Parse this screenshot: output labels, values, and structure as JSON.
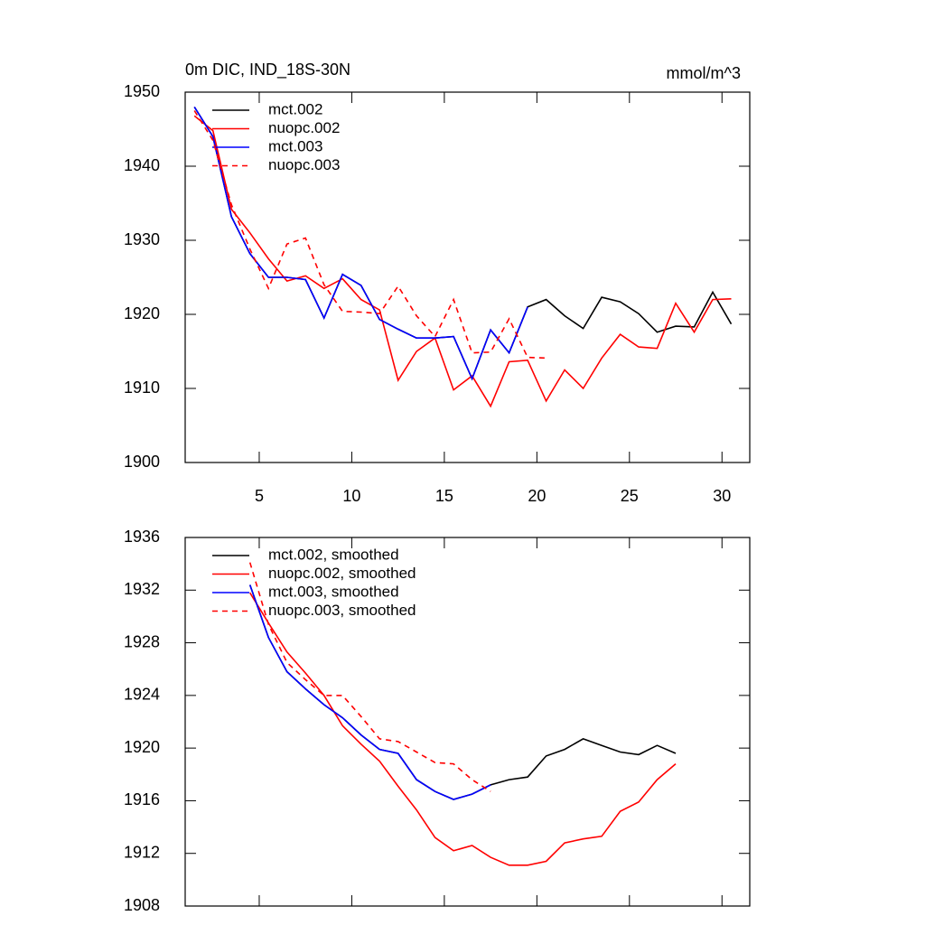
{
  "chart_data": [
    {
      "type": "line",
      "title": "0m DIC, IND_18S-30N",
      "subtitle": "mmol/m^3",
      "xlim": [
        1,
        31.5
      ],
      "xticks": [
        5,
        10,
        15,
        20,
        25,
        30
      ],
      "show_xtick_labels": true,
      "ylim": [
        1900,
        1950
      ],
      "yticks": [
        1900,
        1910,
        1920,
        1930,
        1940,
        1950
      ],
      "series": [
        {
          "name": "mct.002",
          "color": "#000000",
          "dash": false,
          "x": [
            1.5,
            2.5,
            3.5,
            4.5,
            5.5,
            6.5,
            7.5,
            8.5,
            9.5,
            10.5,
            11.5,
            12.5,
            13.5,
            14.5,
            15.5,
            16.5,
            17.5,
            18.5,
            19.5,
            20.5,
            21.5,
            22.5,
            23.5,
            24.5,
            25.5,
            26.5,
            27.5,
            28.5,
            29.5,
            30.5
          ],
          "values": [
            1948,
            1944,
            1933.2,
            1928.2,
            1925,
            1925,
            1924.7,
            1919.5,
            1925.4,
            1923.9,
            1919.3,
            1918,
            1916.8,
            1916.8,
            1917,
            1911.3,
            1917.9,
            1914.8,
            1921,
            1922,
            1919.8,
            1918.1,
            1922.3,
            1921.7,
            1920.1,
            1917.6,
            1918.4,
            1918.3,
            1923,
            1918.7
          ]
        },
        {
          "name": "nuopc.002",
          "color": "#ff0000",
          "dash": false,
          "x": [
            1.5,
            2.5,
            3.5,
            4.5,
            5.5,
            6.5,
            7.5,
            8.5,
            9.5,
            10.5,
            11.5,
            12.5,
            13.5,
            14.5,
            15.5,
            16.5,
            17.5,
            18.5,
            19.5,
            20.5,
            21.5,
            22.5,
            23.5,
            24.5,
            25.5,
            26.5,
            27.5,
            28.5,
            29.5,
            30.5
          ],
          "values": [
            1946.8,
            1944.8,
            1934.2,
            1931,
            1927.5,
            1924.5,
            1925.2,
            1923.5,
            1924.8,
            1922,
            1920.6,
            1911.1,
            1915,
            1916.8,
            1909.8,
            1911.7,
            1907.6,
            1913.6,
            1913.8,
            1908.3,
            1912.5,
            1910,
            1914.1,
            1917.3,
            1915.6,
            1915.4,
            1921.5,
            1917.6,
            1922,
            1922.1
          ]
        },
        {
          "name": "mct.003",
          "color": "#0000ff",
          "dash": false,
          "x": [
            1.5,
            2.5,
            3.5,
            4.5,
            5.5,
            6.5,
            7.5,
            8.5,
            9.5,
            10.5,
            11.5,
            12.5,
            13.5,
            14.5,
            15.5,
            16.5,
            17.5,
            18.5,
            19.5
          ],
          "values": [
            1948,
            1944,
            1933.2,
            1928.2,
            1925,
            1925,
            1924.7,
            1919.5,
            1925.4,
            1923.9,
            1919.3,
            1918,
            1916.8,
            1916.8,
            1917,
            1911.3,
            1917.9,
            1914.8,
            1921
          ]
        },
        {
          "name": "nuopc.003",
          "color": "#ff0000",
          "dash": true,
          "x": [
            1.5,
            2.5,
            3.5,
            4.5,
            5.5,
            6.5,
            7.5,
            8.5,
            9.5,
            10.5,
            11.5,
            12.5,
            13.5,
            14.5,
            15.5,
            16.5,
            17.5,
            18.5,
            19.5,
            20.5
          ],
          "values": [
            1947.5,
            1943.5,
            1934.8,
            1928.8,
            1923.5,
            1929.5,
            1930.3,
            1924,
            1920.4,
            1920.3,
            1920.1,
            1923.8,
            1919.8,
            1917,
            1922,
            1914.8,
            1914.9,
            1919.4,
            1914.2,
            1914.1
          ]
        }
      ]
    },
    {
      "type": "line",
      "xlim": [
        1,
        31.5
      ],
      "xticks": [
        5,
        10,
        15,
        20,
        25,
        30
      ],
      "show_xtick_labels": false,
      "ylim": [
        1908,
        1936
      ],
      "yticks": [
        1908,
        1912,
        1916,
        1920,
        1924,
        1928,
        1932,
        1936
      ],
      "series": [
        {
          "name": "mct.002, smoothed",
          "color": "#000000",
          "dash": false,
          "x": [
            4.5,
            5.5,
            6.5,
            7.5,
            8.5,
            9.5,
            10.5,
            11.5,
            12.5,
            13.5,
            14.5,
            15.5,
            16.5,
            17.5,
            18.5,
            19.5,
            20.5,
            21.5,
            22.5,
            23.5,
            24.5,
            25.5,
            26.5,
            27.5
          ],
          "values": [
            1932.4,
            1928.4,
            1925.8,
            1924.5,
            1923.3,
            1922.3,
            1921,
            1919.9,
            1919.6,
            1917.6,
            1916.7,
            1916.1,
            1916.5,
            1917.2,
            1917.6,
            1917.8,
            1919.4,
            1919.9,
            1920.7,
            1920.2,
            1919.7,
            1919.5,
            1920.2,
            1919.6
          ]
        },
        {
          "name": "nuopc.002, smoothed",
          "color": "#ff0000",
          "dash": false,
          "x": [
            4.5,
            5.5,
            6.5,
            7.5,
            8.5,
            9.5,
            10.5,
            11.5,
            12.5,
            13.5,
            14.5,
            15.5,
            16.5,
            17.5,
            18.5,
            19.5,
            20.5,
            21.5,
            22.5,
            23.5,
            24.5,
            25.5,
            26.5,
            27.5
          ],
          "values": [
            1931.8,
            1929.5,
            1927.3,
            1925.7,
            1924,
            1921.7,
            1920.3,
            1919,
            1917.1,
            1915.3,
            1913.2,
            1912.2,
            1912.6,
            1911.7,
            1911.1,
            1911.1,
            1911.4,
            1912.8,
            1913.1,
            1913.3,
            1915.2,
            1915.9,
            1917.6,
            1918.8
          ]
        },
        {
          "name": "mct.003, smoothed",
          "color": "#0000ff",
          "dash": false,
          "x": [
            4.5,
            5.5,
            6.5,
            7.5,
            8.5,
            9.5,
            10.5,
            11.5,
            12.5,
            13.5,
            14.5,
            15.5,
            16.5,
            17.5
          ],
          "values": [
            1932.4,
            1928.4,
            1925.8,
            1924.5,
            1923.3,
            1922.3,
            1921,
            1919.9,
            1919.6,
            1917.6,
            1916.7,
            1916.1,
            1916.5,
            1917.2
          ]
        },
        {
          "name": "nuopc.003, smoothed",
          "color": "#ff0000",
          "dash": true,
          "x": [
            4.5,
            5.5,
            6.5,
            7.5,
            8.5,
            9.5,
            10.5,
            11.5,
            12.5,
            13.5,
            14.5,
            15.5,
            16.5,
            17.5
          ],
          "values": [
            1934.1,
            1929.4,
            1926.5,
            1925.2,
            1924,
            1924,
            1922.4,
            1920.7,
            1920.5,
            1919.7,
            1918.9,
            1918.8,
            1917.6,
            1916.7
          ]
        }
      ]
    }
  ]
}
